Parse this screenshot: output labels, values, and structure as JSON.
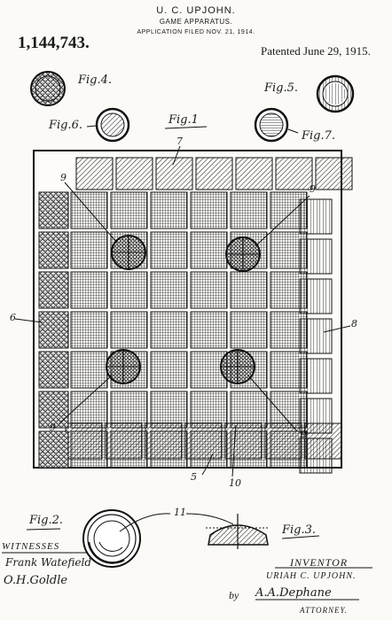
{
  "header": {
    "inventor": "U. C. UPJOHN.",
    "title": "GAME APPARATUS.",
    "filed": "APPLICATION FILED NOV. 21, 1914.",
    "patent_number": "1,144,743.",
    "patented": "Patented June 29, 1915."
  },
  "figures": {
    "fig1": "Fig.1",
    "fig2": "Fig.2.",
    "fig3": "Fig.3.",
    "fig4": "Fig.4.",
    "fig5": "Fig.5.",
    "fig6": "Fig.6.",
    "fig7": "Fig.7."
  },
  "reference_numerals": {
    "n5": "5",
    "n6": "6",
    "n7": "7",
    "n8": "8",
    "n9": "9",
    "n10": "10",
    "n11": "11"
  },
  "signatures": {
    "witnesses_label": "WITNESSES",
    "witness_1": "Frank Watefield",
    "witness_2": "O.H.Goldle",
    "inventor_label": "INVENTOR",
    "inventor_name": "URIAH C. UPJOHN.",
    "by": "by",
    "attorney_signature": "A.A.Dephane",
    "attorney_label": "ATTORNEY."
  },
  "board": {
    "rows": 7,
    "columns": 7,
    "border_row_top": "diagonal-hatch",
    "border_row_bottom": "diagonal-hatch",
    "border_column_left": "crosshatch-pattern",
    "border_column_right": "vertical-hatch",
    "center_squares": "fine-grid-hatch"
  },
  "colors": {
    "ink": "#1a1a1a",
    "paper": "#fbfaf6"
  }
}
